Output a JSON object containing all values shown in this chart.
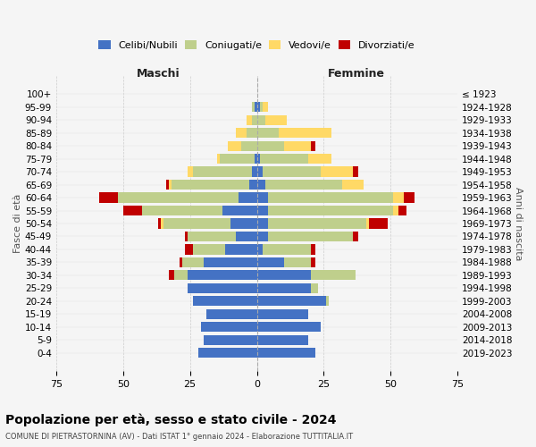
{
  "age_groups": [
    "0-4",
    "5-9",
    "10-14",
    "15-19",
    "20-24",
    "25-29",
    "30-34",
    "35-39",
    "40-44",
    "45-49",
    "50-54",
    "55-59",
    "60-64",
    "65-69",
    "70-74",
    "75-79",
    "80-84",
    "85-89",
    "90-94",
    "95-99",
    "100+"
  ],
  "birth_years": [
    "2019-2023",
    "2014-2018",
    "2009-2013",
    "2004-2008",
    "1999-2003",
    "1994-1998",
    "1989-1993",
    "1984-1988",
    "1979-1983",
    "1974-1978",
    "1969-1973",
    "1964-1968",
    "1959-1963",
    "1954-1958",
    "1949-1953",
    "1944-1948",
    "1939-1943",
    "1934-1938",
    "1929-1933",
    "1924-1928",
    "≤ 1923"
  ],
  "males": {
    "celibi": [
      22,
      20,
      21,
      19,
      24,
      26,
      26,
      20,
      12,
      8,
      10,
      13,
      7,
      3,
      2,
      1,
      0,
      0,
      0,
      1,
      0
    ],
    "coniugati": [
      0,
      0,
      0,
      0,
      0,
      0,
      5,
      8,
      12,
      18,
      25,
      30,
      45,
      29,
      22,
      13,
      6,
      4,
      2,
      1,
      0
    ],
    "vedovi": [
      0,
      0,
      0,
      0,
      0,
      0,
      0,
      0,
      0,
      0,
      1,
      0,
      0,
      1,
      2,
      1,
      5,
      4,
      2,
      0,
      0
    ],
    "divorziati": [
      0,
      0,
      0,
      0,
      0,
      0,
      2,
      1,
      3,
      1,
      1,
      7,
      7,
      1,
      0,
      0,
      0,
      0,
      0,
      0,
      0
    ]
  },
  "females": {
    "nubili": [
      22,
      19,
      24,
      19,
      26,
      20,
      20,
      10,
      2,
      4,
      4,
      4,
      4,
      3,
      2,
      1,
      0,
      0,
      0,
      1,
      0
    ],
    "coniugate": [
      0,
      0,
      0,
      0,
      1,
      3,
      17,
      10,
      18,
      32,
      37,
      47,
      47,
      29,
      22,
      18,
      10,
      8,
      3,
      1,
      0
    ],
    "vedove": [
      0,
      0,
      0,
      0,
      0,
      0,
      0,
      0,
      0,
      0,
      1,
      2,
      4,
      8,
      12,
      9,
      10,
      20,
      8,
      2,
      0
    ],
    "divorziate": [
      0,
      0,
      0,
      0,
      0,
      0,
      0,
      2,
      2,
      2,
      7,
      3,
      4,
      0,
      2,
      0,
      2,
      0,
      0,
      0,
      0
    ]
  },
  "colors": {
    "celibi": "#4472C4",
    "coniugati": "#BFCF8C",
    "vedovi": "#FFD966",
    "divorziati": "#C00000"
  },
  "xlim": 75,
  "title": "Popolazione per età, sesso e stato civile - 2024",
  "subtitle": "COMUNE DI PIETRASTORNINA (AV) - Dati ISTAT 1° gennaio 2024 - Elaborazione TUTTITALIA.IT",
  "ylabel_left": "Fasce di età",
  "ylabel_right": "Anni di nascita",
  "xlabel_left": "Maschi",
  "xlabel_right": "Femmine",
  "bg_color": "#f5f5f5",
  "grid_color": "#cccccc"
}
